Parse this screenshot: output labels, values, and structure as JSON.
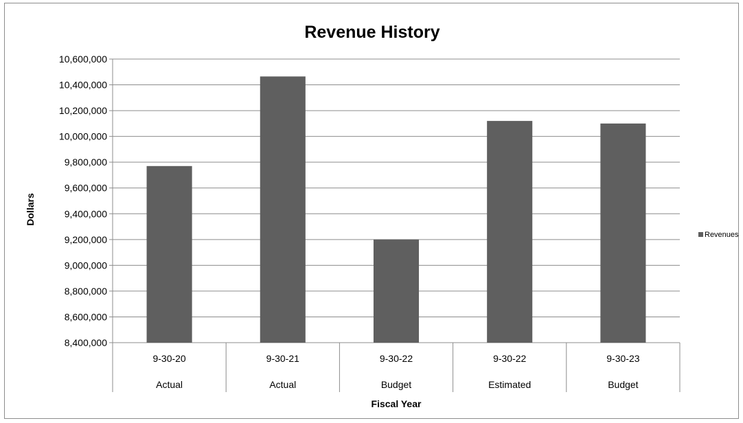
{
  "chart_data": {
    "type": "bar",
    "title": "Revenue History",
    "xlabel": "Fiscal Year",
    "ylabel": "Dollars",
    "ylim": [
      8400000,
      10600000
    ],
    "ytick_step": 200000,
    "categories": [
      "9-30-20",
      "9-30-21",
      "9-30-22",
      "9-30-22",
      "9-30-23"
    ],
    "category_groups": [
      "Actual",
      "Actual",
      "Budget",
      "Estimated",
      "Budget"
    ],
    "series": [
      {
        "name": "Revenues",
        "values": [
          9770000,
          10465000,
          9200000,
          10120000,
          10100000
        ]
      }
    ],
    "bar_color": "#5f5f5f",
    "grid": true,
    "legend_position": "right"
  }
}
